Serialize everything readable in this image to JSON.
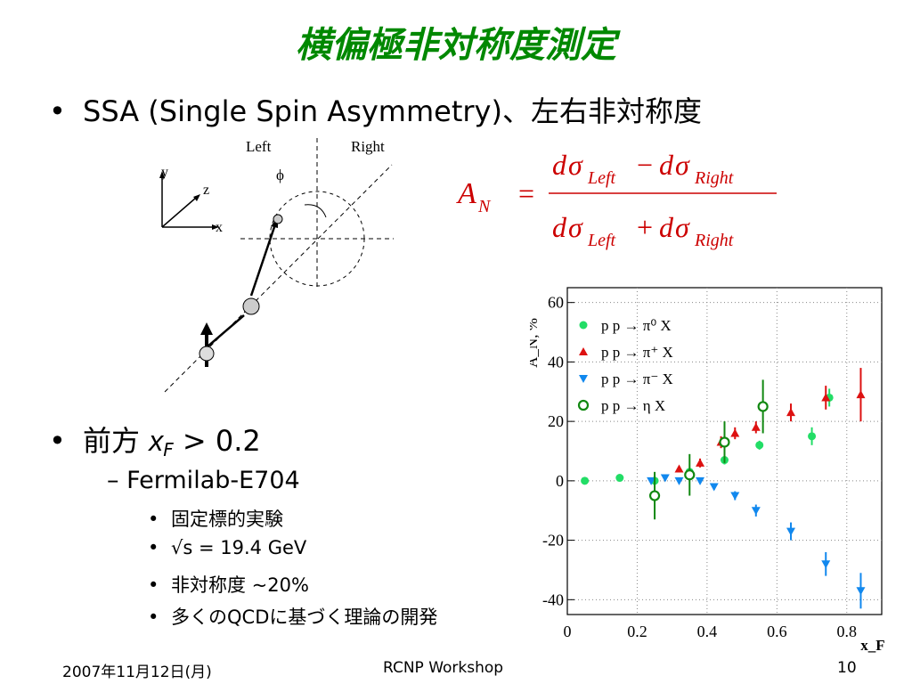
{
  "slide": {
    "title": "横偏極非対称度測定",
    "bullet1": "SSA (Single Spin Asymmetry)、左右非対称度",
    "bullet2_prefix": "前方 ",
    "bullet2_var": "x",
    "bullet2_sub": "F",
    "bullet2_suffix": " > 0.2",
    "sub_bullet": "Fermilab-E704",
    "sub_sub_bullets": [
      "固定標的実験",
      "√s = 19.4 GeV",
      "非対称度 ~20%",
      "多くのQCDに基づく理論の開発"
    ],
    "bullet_char": "•",
    "dash_char": "–"
  },
  "diagram": {
    "label_left": "Left",
    "label_right": "Right",
    "axis_y": "y",
    "axis_z": "z",
    "axis_x": "x",
    "angle": "ϕ"
  },
  "formula": {
    "lhs": "A",
    "lhs_sub": "N",
    "equals": "=",
    "d": "d",
    "sigma": "σ",
    "left": "Left",
    "right": "Right",
    "minus": "−",
    "plus": "+"
  },
  "footer": {
    "date": "2007年11月12日(月)",
    "center": "RCNP Workshop",
    "page": "10"
  },
  "chart_data": {
    "type": "scatter",
    "ylabel": "A_N, %",
    "xlabel": "x_F",
    "xlim": [
      0,
      0.9
    ],
    "ylim": [
      -45,
      65
    ],
    "x_ticks": [
      "0",
      "0.2",
      "0.4",
      "0.6",
      "0.8"
    ],
    "y_ticks": [
      "60",
      "40",
      "20",
      "0",
      "-20",
      "-40"
    ],
    "grid": true,
    "legend_position": "top-left",
    "series": [
      {
        "name": "p p → π⁰ X",
        "color": "#22dd66",
        "marker": "circle",
        "x": [
          0.05,
          0.15,
          0.25,
          0.35,
          0.45,
          0.55,
          0.7,
          0.75
        ],
        "y": [
          0,
          1,
          0,
          3,
          7,
          12,
          15,
          28
        ],
        "err": [
          1,
          1,
          1,
          1,
          1.5,
          1.5,
          3,
          3
        ]
      },
      {
        "name": "p p → π⁺ X",
        "color": "#dd1111",
        "marker": "triangle-up",
        "x": [
          0.32,
          0.38,
          0.44,
          0.48,
          0.54,
          0.64,
          0.74,
          0.84
        ],
        "y": [
          4,
          6,
          13,
          16,
          18,
          23,
          28,
          29
        ],
        "err": [
          1,
          1.5,
          2,
          2,
          2,
          3,
          4,
          9
        ]
      },
      {
        "name": "p p → π⁻ X",
        "color": "#1188ee",
        "marker": "triangle-down",
        "x": [
          0.24,
          0.28,
          0.32,
          0.38,
          0.42,
          0.48,
          0.54,
          0.64,
          0.74,
          0.84
        ],
        "y": [
          0,
          1,
          0,
          0,
          -2,
          -5,
          -10,
          -17,
          -28,
          -37
        ],
        "err": [
          1,
          1,
          1,
          1,
          1,
          1.5,
          2,
          3,
          4,
          6
        ]
      },
      {
        "name": "p p → η X",
        "color": "#118811",
        "marker": "open-circle",
        "x": [
          0.25,
          0.35,
          0.45,
          0.56
        ],
        "y": [
          -5,
          2,
          13,
          25
        ],
        "err": [
          8,
          7,
          7,
          9
        ]
      }
    ]
  }
}
